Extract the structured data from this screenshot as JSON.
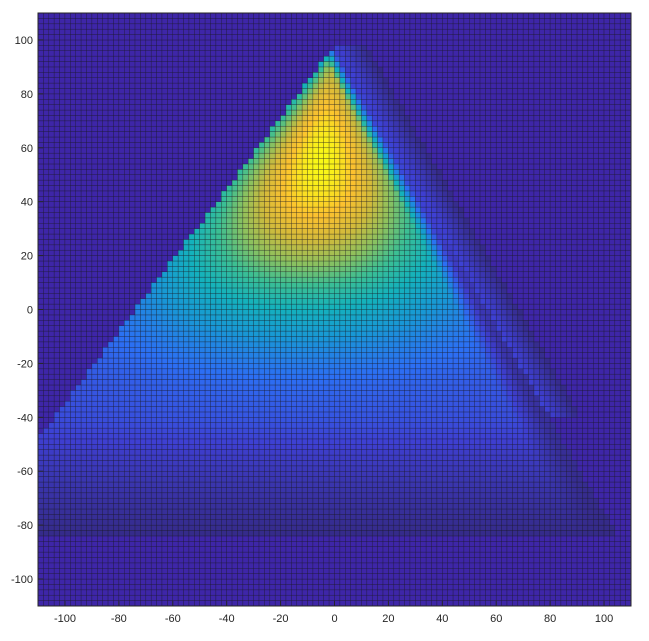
{
  "chart_data": {
    "type": "heatmap",
    "title": "",
    "xlabel": "",
    "ylabel": "",
    "xlim": [
      -110,
      110
    ],
    "ylim": [
      -110,
      110
    ],
    "cell_size": 2,
    "xticks": [
      -100,
      -80,
      -60,
      -40,
      -20,
      0,
      20,
      40,
      60,
      80,
      100
    ],
    "yticks": [
      100,
      80,
      60,
      40,
      20,
      0,
      -20,
      -40,
      -60,
      -80,
      -100
    ],
    "grid": true,
    "colormap": "parula",
    "colormap_stops": [
      "#352a87",
      "#3e3fd2",
      "#2c6ff4",
      "#1898d5",
      "#14b2bc",
      "#3bbf94",
      "#8dc15e",
      "#d1ba3b",
      "#fcc12f",
      "#f9f916"
    ],
    "background_color": "#3e26a8",
    "grid_line_color": "#1a1a1a",
    "axis_color": "#262626",
    "field": {
      "shape": "triangular wedge",
      "apex": [
        0,
        98
      ],
      "left_edge_slope_deg_from_vertical": 37,
      "right_edge_slope_deg_from_vertical": 30,
      "peak_center": [
        -5,
        55
      ],
      "peak_value": 1.0,
      "baseline_value": 0.0
    },
    "samples": [
      {
        "x": -4,
        "y": 80,
        "value": 0.98
      },
      {
        "x": 0,
        "y": 60,
        "value": 0.97
      },
      {
        "x": -20,
        "y": 40,
        "value": 0.85
      },
      {
        "x": -10,
        "y": 25,
        "value": 0.78
      },
      {
        "x": -40,
        "y": 10,
        "value": 0.45
      },
      {
        "x": 0,
        "y": 0,
        "value": 0.42
      },
      {
        "x": -20,
        "y": -20,
        "value": 0.28
      },
      {
        "x": 10,
        "y": -30,
        "value": 0.18
      },
      {
        "x": -50,
        "y": -45,
        "value": 0.08
      },
      {
        "x": 30,
        "y": 10,
        "value": 0.22
      },
      {
        "x": 60,
        "y": 0,
        "value": 0.0
      },
      {
        "x": -90,
        "y": 60,
        "value": 0.0
      }
    ]
  }
}
